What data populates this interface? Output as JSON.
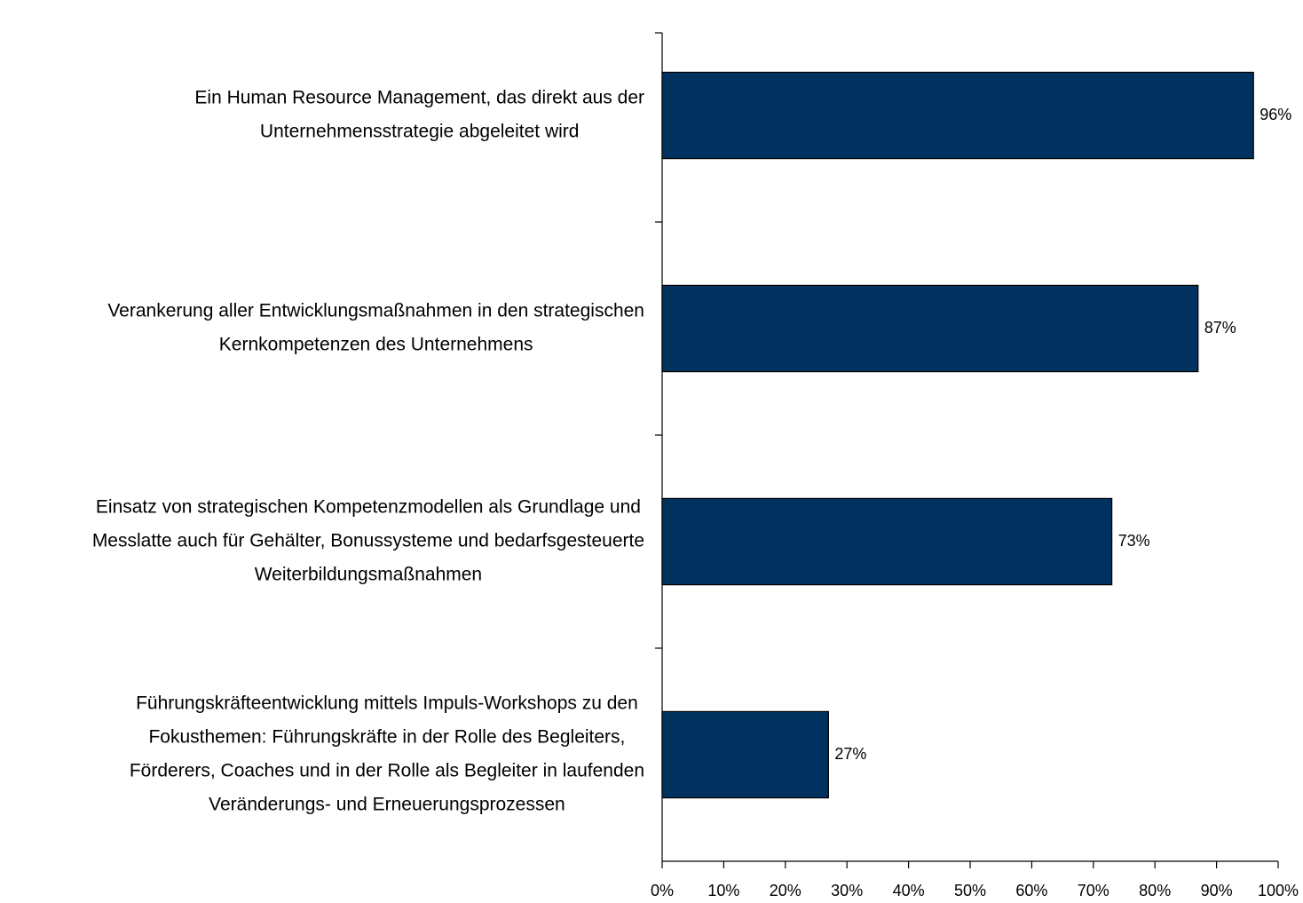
{
  "chart_data": {
    "type": "barh",
    "categories": [
      [
        "Ein Human Resource Management, das direkt aus der",
        "Unternehmensstrategie abgeleitet wird"
      ],
      [
        "Verankerung aller Entwicklungsmaßnahmen in den strategischen",
        "Kernkompetenzen des Unternehmens"
      ],
      [
        "Einsatz von strategischen Kompetenzmodellen als Grundlage und",
        "Messlatte auch für Gehälter, Bonussysteme und bedarfsgesteuerte",
        "Weiterbildungsmaßnahmen"
      ],
      [
        "Führungskräfteentwicklung mittels Impuls-Workshops zu den",
        "Fokusthemen: Führungskräfte in der Rolle des Begleiters,",
        "Förderers, Coaches und in der Rolle als Begleiter in laufenden",
        "Veränderungs- und Erneuerungsprozessen"
      ]
    ],
    "values": [
      96,
      87,
      73,
      27
    ],
    "value_labels": [
      "96%",
      "87%",
      "73%",
      "27%"
    ],
    "color": "#01325f",
    "xlim": [
      0,
      100
    ],
    "xticks": [
      {
        "value": 0,
        "label": "0%"
      },
      {
        "value": 10,
        "label": "10%"
      },
      {
        "value": 20,
        "label": "20%"
      },
      {
        "value": 30,
        "label": "30%"
      },
      {
        "value": 40,
        "label": "40%"
      },
      {
        "value": 50,
        "label": "50%"
      },
      {
        "value": 60,
        "label": "60%"
      },
      {
        "value": 70,
        "label": "70%"
      },
      {
        "value": 80,
        "label": "80%"
      },
      {
        "value": 90,
        "label": "90%"
      },
      {
        "value": 100,
        "label": "100%"
      }
    ],
    "grid": false
  }
}
